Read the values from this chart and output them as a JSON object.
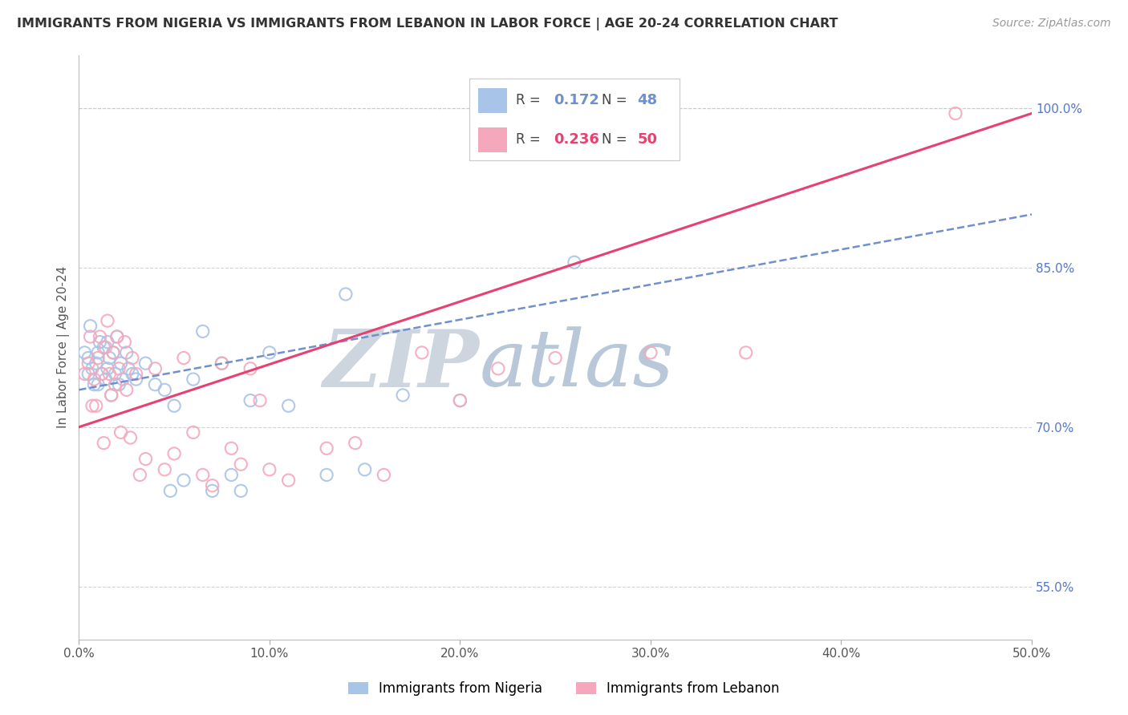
{
  "title": "IMMIGRANTS FROM NIGERIA VS IMMIGRANTS FROM LEBANON IN LABOR FORCE | AGE 20-24 CORRELATION CHART",
  "source": "Source: ZipAtlas.com",
  "ylabel": "In Labor Force | Age 20-24",
  "xlim": [
    0.0,
    50.0
  ],
  "ylim": [
    50.0,
    105.0
  ],
  "xticks": [
    0.0,
    10.0,
    20.0,
    30.0,
    40.0,
    50.0
  ],
  "xtick_labels": [
    "0.0%",
    "10.0%",
    "20.0%",
    "30.0%",
    "40.0%",
    "50.0%"
  ],
  "yticks_right": [
    55.0,
    70.0,
    85.0,
    100.0
  ],
  "ytick_labels_right": [
    "55.0%",
    "70.0%",
    "85.0%",
    "100.0%"
  ],
  "nigeria_R": 0.172,
  "nigeria_N": 48,
  "lebanon_R": 0.236,
  "lebanon_N": 50,
  "nigeria_color": "#a8c4e8",
  "lebanon_color": "#f5a8bc",
  "nigeria_line_color": "#7090cc",
  "lebanon_line_color": "#e84070",
  "background_color": "#ffffff",
  "grid_color": "#c8c8c8",
  "watermark_zip_color": "#c8d0dc",
  "watermark_atlas_color": "#b8c8d8",
  "nigeria_x": [
    0.3,
    0.5,
    0.5,
    0.6,
    0.7,
    0.8,
    0.9,
    1.0,
    1.0,
    1.1,
    1.2,
    1.3,
    1.4,
    1.5,
    1.5,
    1.6,
    1.7,
    1.8,
    1.9,
    2.0,
    2.1,
    2.2,
    2.3,
    2.5,
    2.6,
    2.8,
    3.0,
    3.5,
    4.0,
    4.5,
    4.8,
    5.0,
    5.5,
    6.0,
    6.5,
    7.0,
    7.5,
    8.0,
    8.5,
    9.0,
    10.0,
    11.0,
    13.0,
    14.0,
    15.0,
    17.0,
    20.0,
    26.0
  ],
  "nigeria_y": [
    77.0,
    76.5,
    75.0,
    79.5,
    75.5,
    74.0,
    76.0,
    77.0,
    74.0,
    78.0,
    75.0,
    77.5,
    74.5,
    78.0,
    75.5,
    76.5,
    73.0,
    77.0,
    75.0,
    78.5,
    74.0,
    76.0,
    74.5,
    77.0,
    75.5,
    75.0,
    74.5,
    76.0,
    74.0,
    73.5,
    64.0,
    72.0,
    65.0,
    74.5,
    79.0,
    64.0,
    76.0,
    65.5,
    64.0,
    72.5,
    77.0,
    72.0,
    65.5,
    82.5,
    66.0,
    73.0,
    72.5,
    85.5
  ],
  "lebanon_x": [
    0.3,
    0.5,
    0.6,
    0.7,
    0.8,
    0.9,
    1.0,
    1.1,
    1.2,
    1.3,
    1.4,
    1.5,
    1.6,
    1.7,
    1.8,
    1.9,
    2.0,
    2.1,
    2.2,
    2.4,
    2.5,
    2.7,
    2.8,
    3.0,
    3.2,
    3.5,
    4.0,
    4.5,
    5.0,
    5.5,
    6.0,
    6.5,
    7.0,
    7.5,
    8.0,
    8.5,
    9.0,
    9.5,
    10.0,
    11.0,
    13.0,
    14.5,
    16.0,
    18.0,
    20.0,
    22.0,
    25.0,
    30.0,
    35.0,
    46.0
  ],
  "lebanon_y": [
    75.0,
    76.0,
    78.5,
    72.0,
    74.5,
    72.0,
    76.5,
    78.5,
    75.0,
    68.5,
    77.5,
    80.0,
    75.0,
    73.0,
    77.0,
    74.0,
    78.5,
    75.5,
    69.5,
    78.0,
    73.5,
    69.0,
    76.5,
    75.0,
    65.5,
    67.0,
    75.5,
    66.0,
    67.5,
    76.5,
    69.5,
    65.5,
    64.5,
    76.0,
    68.0,
    66.5,
    75.5,
    72.5,
    66.0,
    65.0,
    68.0,
    68.5,
    65.5,
    77.0,
    72.5,
    75.5,
    76.5,
    77.0,
    77.0,
    99.5
  ],
  "nigeria_trend_x": [
    0.0,
    50.0
  ],
  "nigeria_trend_y": [
    73.5,
    90.0
  ],
  "lebanon_trend_x": [
    0.0,
    50.0
  ],
  "lebanon_trend_y": [
    70.0,
    99.5
  ]
}
